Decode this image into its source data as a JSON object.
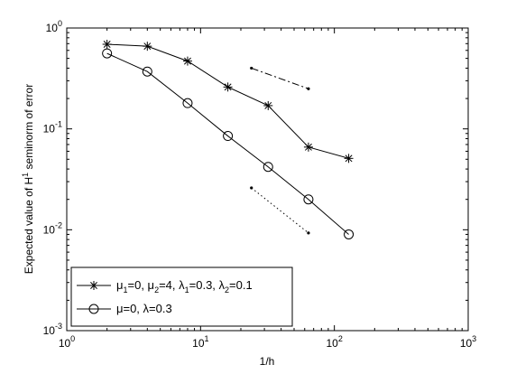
{
  "chart_data": {
    "type": "line",
    "xscale": "log",
    "yscale": "log",
    "xlim": [
      1,
      1000
    ],
    "ylim": [
      0.001,
      1
    ],
    "xlabel": "1/h",
    "ylabel": {
      "before": "Expected value of H",
      "sup": "1",
      "after": " seminorm of error"
    },
    "xticks": [
      {
        "value": 1,
        "base": "10",
        "exp": "0"
      },
      {
        "value": 10,
        "base": "10",
        "exp": "1"
      },
      {
        "value": 100,
        "base": "10",
        "exp": "2"
      },
      {
        "value": 1000,
        "base": "10",
        "exp": "3"
      }
    ],
    "yticks": [
      {
        "value": 0.001,
        "base": "10",
        "exp": "-3"
      },
      {
        "value": 0.01,
        "base": "10",
        "exp": "-2"
      },
      {
        "value": 0.1,
        "base": "10",
        "exp": "-1"
      },
      {
        "value": 1,
        "base": "10",
        "exp": "0"
      }
    ],
    "legend_position": "bottom-left",
    "series": [
      {
        "marker": "asterisk",
        "x": [
          2,
          4,
          8,
          16,
          32,
          64,
          128
        ],
        "y": [
          0.69,
          0.66,
          0.47,
          0.26,
          0.17,
          0.066,
          0.051
        ],
        "legend": [
          {
            "t": "μ"
          },
          {
            "t": "1",
            "s": "sub"
          },
          {
            "t": "=0, μ"
          },
          {
            "t": "2",
            "s": "sub"
          },
          {
            "t": "=4, λ"
          },
          {
            "t": "1",
            "s": "sub"
          },
          {
            "t": "=0.3, λ"
          },
          {
            "t": "2",
            "s": "sub"
          },
          {
            "t": "=0.1"
          }
        ]
      },
      {
        "marker": "circle",
        "x": [
          2,
          4,
          8,
          16,
          32,
          64,
          128
        ],
        "y": [
          0.56,
          0.37,
          0.18,
          0.085,
          0.042,
          0.02,
          0.009
        ],
        "legend": [
          {
            "t": "μ=0, λ=0.3"
          }
        ]
      }
    ],
    "reference_lines": [
      {
        "style": "dashdot",
        "x": [
          24,
          64
        ],
        "y": [
          0.4,
          0.25
        ]
      },
      {
        "style": "dotted",
        "x": [
          24,
          64
        ],
        "y": [
          0.026,
          0.0093
        ]
      }
    ]
  }
}
